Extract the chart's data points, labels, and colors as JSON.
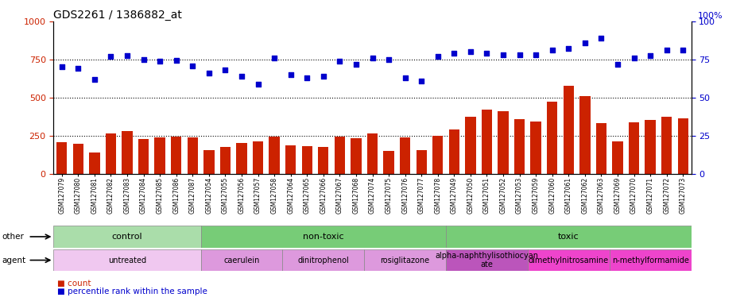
{
  "title": "GDS2261 / 1386882_at",
  "samples": [
    "GSM127079",
    "GSM127080",
    "GSM127081",
    "GSM127082",
    "GSM127083",
    "GSM127084",
    "GSM127085",
    "GSM127086",
    "GSM127087",
    "GSM127054",
    "GSM127055",
    "GSM127056",
    "GSM127057",
    "GSM127058",
    "GSM127064",
    "GSM127065",
    "GSM127066",
    "GSM127067",
    "GSM127068",
    "GSM127074",
    "GSM127075",
    "GSM127076",
    "GSM127077",
    "GSM127078",
    "GSM127049",
    "GSM127050",
    "GSM127051",
    "GSM127052",
    "GSM127053",
    "GSM127059",
    "GSM127060",
    "GSM127061",
    "GSM127062",
    "GSM127063",
    "GSM127069",
    "GSM127070",
    "GSM127071",
    "GSM127072",
    "GSM127073"
  ],
  "counts": [
    210,
    195,
    140,
    265,
    280,
    230,
    240,
    245,
    240,
    155,
    175,
    205,
    215,
    245,
    185,
    180,
    175,
    245,
    235,
    265,
    150,
    240,
    155,
    250,
    290,
    375,
    420,
    410,
    360,
    345,
    475,
    580,
    510,
    335,
    215,
    340,
    355,
    375,
    365
  ],
  "percentiles": [
    700,
    690,
    620,
    770,
    775,
    750,
    740,
    745,
    710,
    660,
    680,
    640,
    590,
    760,
    650,
    630,
    640,
    740,
    720,
    760,
    750,
    630,
    610,
    770,
    790,
    800,
    790,
    780,
    780,
    780,
    810,
    820,
    860,
    890,
    720,
    760,
    775,
    810,
    810
  ],
  "bar_color": "#cc2200",
  "scatter_color": "#0000cc",
  "ylim_left": [
    0,
    1000
  ],
  "ylim_right": [
    0,
    100
  ],
  "yticks_left": [
    0,
    250,
    500,
    750,
    1000
  ],
  "yticks_right": [
    0,
    25,
    50,
    75,
    100
  ],
  "other_groups": [
    {
      "label": "control",
      "start": 0,
      "end": 9,
      "color": "#aaddaa"
    },
    {
      "label": "non-toxic",
      "start": 9,
      "end": 24,
      "color": "#77cc77"
    },
    {
      "label": "toxic",
      "start": 24,
      "end": 39,
      "color": "#77cc77"
    }
  ],
  "agent_groups": [
    {
      "label": "untreated",
      "start": 0,
      "end": 9,
      "color": "#f0c8f0"
    },
    {
      "label": "caerulein",
      "start": 9,
      "end": 14,
      "color": "#dd99dd"
    },
    {
      "label": "dinitrophenol",
      "start": 14,
      "end": 19,
      "color": "#dd99dd"
    },
    {
      "label": "rosiglitazone",
      "start": 19,
      "end": 24,
      "color": "#dd99dd"
    },
    {
      "label": "alpha-naphthylisothiocyan\nate",
      "start": 24,
      "end": 29,
      "color": "#bb55bb"
    },
    {
      "label": "dimethylnitrosamine",
      "start": 29,
      "end": 34,
      "color": "#ee44cc"
    },
    {
      "label": "n-methylformamide",
      "start": 34,
      "end": 39,
      "color": "#ee44cc"
    }
  ]
}
